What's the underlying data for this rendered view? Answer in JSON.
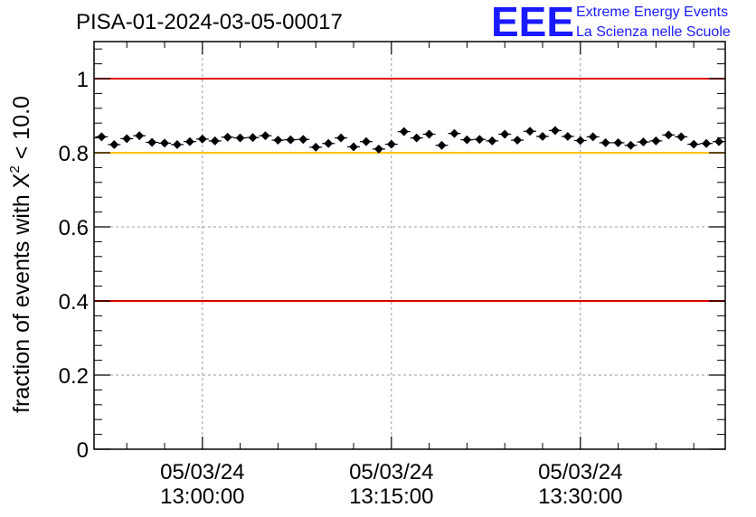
{
  "page": {
    "title": "PISA-01-2024-03-05-00017"
  },
  "logo": {
    "mark": "EEE",
    "line1": "Extreme Energy Events",
    "line2": "La Scienza nelle Scuole",
    "color": "#1a1aff"
  },
  "chart_data": {
    "type": "scatter",
    "title": "PISA-01-2024-03-05-00017",
    "ylabel": "fraction of events with X",
    "ylabel_sup": "2",
    "ylabel_suffix": " < 10.0",
    "xlabel": "",
    "ylim": [
      0,
      1.1
    ],
    "xlim_minutes_from_first_tick": [
      -8.6,
      41.5
    ],
    "y_ticks": [
      "0",
      "0.2",
      "0.4",
      "0.6",
      "0.8",
      "1"
    ],
    "y_tick_values": [
      0,
      0.2,
      0.4,
      0.6,
      0.8,
      1.0
    ],
    "x_ticks": [
      {
        "date": "05/03/24",
        "time": "13:00:00",
        "minutes": 0
      },
      {
        "date": "05/03/24",
        "time": "13:15:00",
        "minutes": 15
      },
      {
        "date": "05/03/24",
        "time": "13:30:00",
        "minutes": 30
      }
    ],
    "grid": true,
    "reference_lines": [
      {
        "y": 1.0,
        "color": "#e00000"
      },
      {
        "y": 0.8,
        "color": "#ffc000"
      },
      {
        "y": 0.4,
        "color": "#e00000"
      }
    ],
    "marker_color": "#000000",
    "x": [
      -8.0,
      -7.0,
      -6.0,
      -5.0,
      -4.0,
      -3.0,
      -2.0,
      -1.0,
      0.0,
      1.0,
      2.0,
      3.0,
      4.0,
      5.0,
      6.0,
      7.0,
      8.0,
      9.0,
      10.0,
      11.0,
      12.0,
      13.0,
      14.0,
      15.0,
      16.0,
      17.0,
      18.0,
      19.0,
      20.0,
      21.0,
      22.0,
      23.0,
      24.0,
      25.0,
      26.0,
      27.0,
      28.0,
      29.0,
      30.0,
      31.0,
      32.0,
      33.0,
      34.0,
      35.0,
      36.0,
      37.0,
      38.0,
      39.0,
      40.0,
      41.0
    ],
    "y": [
      0.843,
      0.822,
      0.838,
      0.846,
      0.828,
      0.826,
      0.822,
      0.83,
      0.837,
      0.832,
      0.842,
      0.84,
      0.841,
      0.846,
      0.834,
      0.835,
      0.836,
      0.815,
      0.825,
      0.84,
      0.816,
      0.83,
      0.81,
      0.823,
      0.857,
      0.84,
      0.85,
      0.82,
      0.852,
      0.835,
      0.836,
      0.832,
      0.85,
      0.834,
      0.858,
      0.844,
      0.86,
      0.844,
      0.833,
      0.843,
      0.827,
      0.827,
      0.82,
      0.829,
      0.832,
      0.848,
      0.843,
      0.823,
      0.825,
      0.83
    ],
    "y_error": 0.008
  }
}
